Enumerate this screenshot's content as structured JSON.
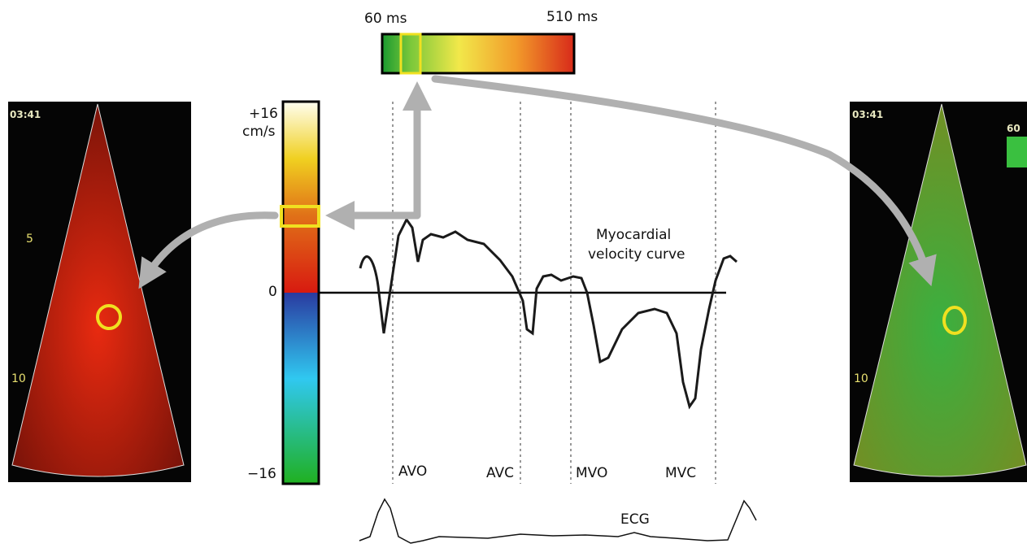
{
  "time_scale": {
    "min_label": "60 ms",
    "max_label": "510 ms"
  },
  "velocity_scale": {
    "max_label": "+16",
    "unit": "cm/s",
    "zero_label": "0",
    "min_label": "−16"
  },
  "curve_label": [
    "Myocardial",
    "velocity curve"
  ],
  "events": [
    "AVO",
    "AVC",
    "MVO",
    "MVC"
  ],
  "ecg_label": "ECG",
  "left_image": {
    "time": "03:41",
    "depth_marks": [
      "5",
      "10"
    ]
  },
  "right_image": {
    "time": "03:41",
    "scale_label": "60",
    "depth_marks": [
      "10"
    ]
  }
}
